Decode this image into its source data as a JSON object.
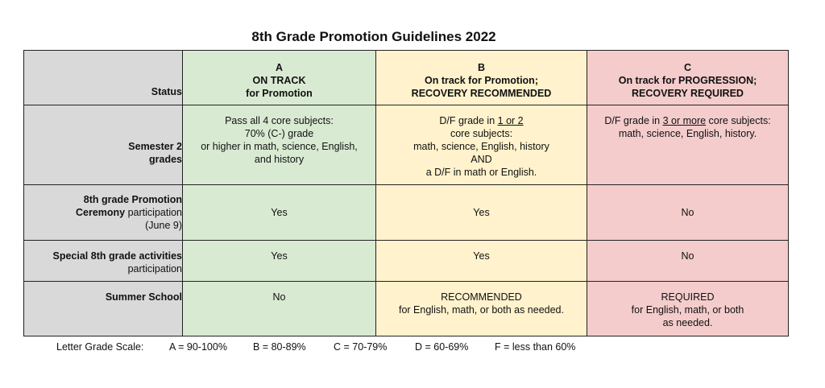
{
  "title": "8th Grade Promotion Guidelines 2022",
  "header": {
    "status": "Status",
    "a": {
      "letter": "A",
      "line1": "ON TRACK",
      "line2": "for Promotion"
    },
    "b": {
      "letter": "B",
      "line1": "On track for Promotion;",
      "line2": "RECOVERY RECOMMENDED"
    },
    "c": {
      "letter": "C",
      "line1": "On track for PROGRESSION;",
      "line2": "RECOVERY REQUIRED"
    }
  },
  "rows": {
    "semester": {
      "label_line1": "Semester 2",
      "label_line2": "grades",
      "a": {
        "l1": "Pass all 4 core subjects:",
        "l2": "70% (C-) grade",
        "l3": "or higher in math, science, English,",
        "l4": "and history"
      },
      "b": {
        "l1_pre": "D/F grade in ",
        "l1_u": "1 or 2",
        "l2": "core subjects:",
        "l3": "math, science, English, history",
        "l4": "AND",
        "l5": "a D/F in math or English."
      },
      "c": {
        "l1_pre": "D/F grade in ",
        "l1_u": "3 or more",
        "l1_post": " core subjects:",
        "l2": "math, science, English, history."
      }
    },
    "ceremony": {
      "label_line1": "8th grade Promotion",
      "label_line2_bold": "Ceremony",
      "label_line2_rest": " participation",
      "label_line3": "(June 9)",
      "a": "Yes",
      "b": "Yes",
      "c": "No"
    },
    "activities": {
      "label_line1": "Special 8th grade activities",
      "label_line2": "participation",
      "a": "Yes",
      "b": "Yes",
      "c": "No"
    },
    "summer": {
      "label": "Summer School",
      "a": "No",
      "b": {
        "l1": "RECOMMENDED",
        "l2": "for English, math, or both as needed."
      },
      "c": {
        "l1": "REQUIRED",
        "l2": "for English, math, or both",
        "l3": "as needed."
      }
    }
  },
  "scale": {
    "label": "Letter Grade Scale:",
    "a": "A = 90-100%",
    "b": "B = 80-89%",
    "c": "C = 70-79%",
    "d": "D = 60-69%",
    "f": "F = less than 60%"
  },
  "colors": {
    "label_bg": "#d9d9d9",
    "a_bg": "#d9ead3",
    "b_bg": "#fff2cc",
    "c_bg": "#f4cccc"
  }
}
